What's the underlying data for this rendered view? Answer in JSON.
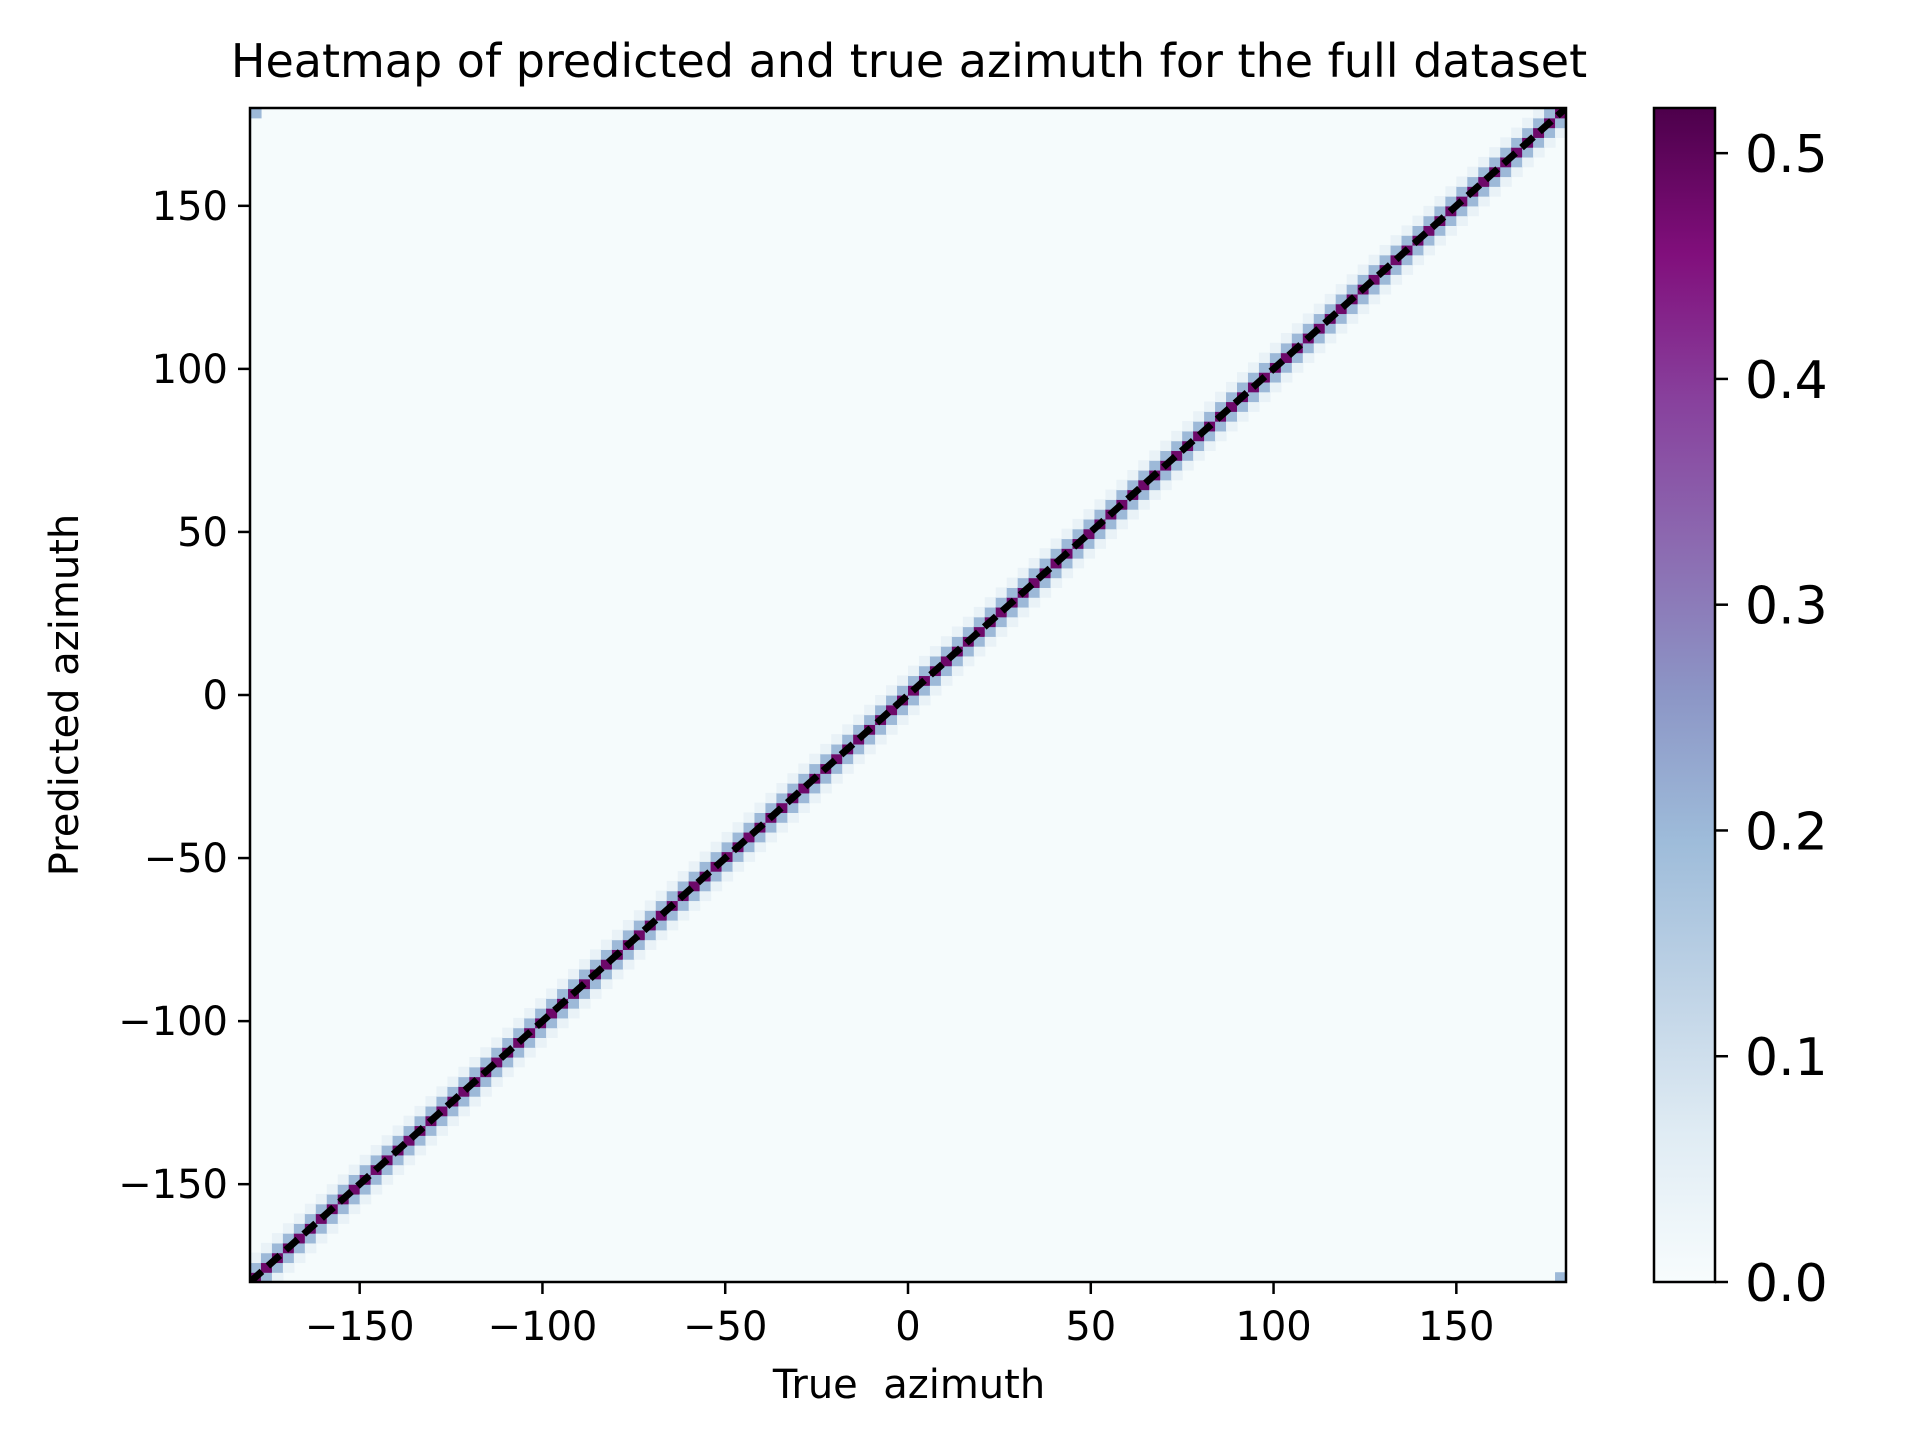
{
  "chart_data": {
    "type": "heatmap",
    "title": "Heatmap of predicted and true azimuth for the full dataset",
    "xlabel": "True  azimuth",
    "ylabel": "Predicted azimuth",
    "xlim": [
      -180,
      180
    ],
    "ylim": [
      -180,
      180
    ],
    "x_ticks": [
      -150,
      -100,
      -50,
      0,
      50,
      100,
      150
    ],
    "x_tick_labels": [
      "−150",
      "−100",
      "−50",
      "0",
      "50",
      "100",
      "150"
    ],
    "y_ticks": [
      -150,
      -100,
      -50,
      0,
      50,
      100,
      150
    ],
    "y_tick_labels": [
      "−150",
      "−100",
      "−50",
      "0",
      "50",
      "100",
      "150"
    ],
    "bins": 120,
    "bin_width": 3,
    "cell_values": {
      "diagonal": 0.48,
      "adjacent_diagonal": 0.2,
      "second_off_diagonal": 0.04,
      "background": 0.005,
      "corner_wraparound": 0.2
    },
    "diagonal_line": {
      "x": [
        -180,
        180
      ],
      "y": [
        -180,
        180
      ],
      "color": "#000000",
      "style": "dashed"
    },
    "grid": false,
    "colorbar": {
      "colormap": "BuPu",
      "range": [
        0.0,
        0.52
      ],
      "ticks": [
        0.0,
        0.1,
        0.2,
        0.3,
        0.4,
        0.5
      ],
      "tick_labels": [
        "0.0",
        "0.1",
        "0.2",
        "0.3",
        "0.4",
        "0.5"
      ],
      "colors": [
        "#f7fcfd",
        "#e0ecf4",
        "#bfd3e6",
        "#9ebcda",
        "#8c96c6",
        "#8c6bb1",
        "#88419d",
        "#810f7c",
        "#4d004b"
      ]
    }
  }
}
